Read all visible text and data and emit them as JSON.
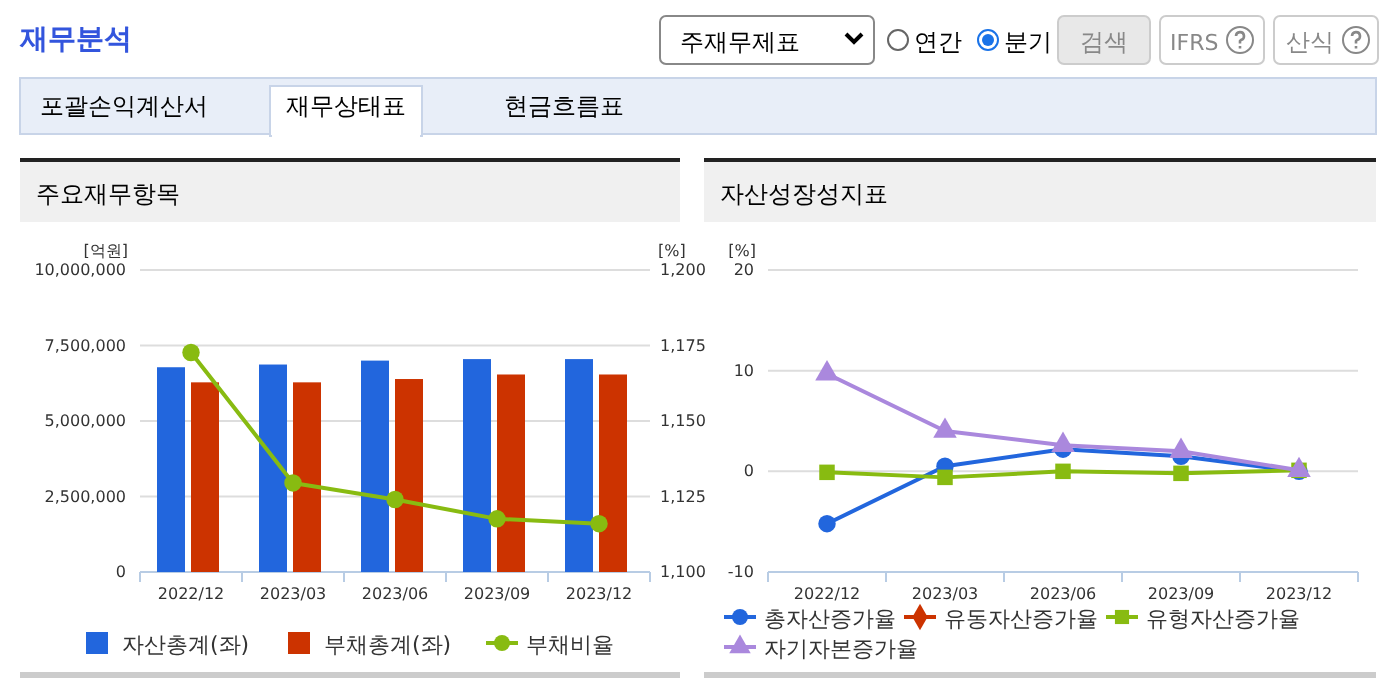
{
  "chart_data": [
    {
      "type": "bar",
      "title": "주요재무항목",
      "ylabel": "[억원]",
      "y2label": "[%]",
      "annotations": [
        "재무분석",
        "주재무제표",
        "연간",
        "분기",
        "검색",
        "IFRS",
        "산식",
        "포괄손익계산서",
        "재무상태표",
        "현금흐름표"
      ],
      "categories": [
        "2022/12",
        "2023/03",
        "2023/06",
        "2023/09",
        "2023/12"
      ],
      "series": [
        {
          "name": "자산총계(좌)",
          "color": "#2266dd",
          "values": [
            6780000,
            6870000,
            7000000,
            7050000,
            7050000
          ]
        },
        {
          "name": "부채총계(좌)",
          "color": "#cc3300",
          "values": [
            6280000,
            6280000,
            6390000,
            6540000,
            6540000
          ]
        },
        {
          "name": "부채비율",
          "type": "line",
          "axis": "y2",
          "color": "#88bb11",
          "marker": "circle",
          "values": [
            1172.7,
            1129.5,
            1124,
            1117.6,
            1116
          ]
        }
      ],
      "ylim": [
        0,
        10000000
      ],
      "yticks": [
        {
          "value": 0,
          "label": "0"
        },
        {
          "value": 2500000,
          "label": "2,500,000"
        },
        {
          "value": 5000000,
          "label": "5,000,000"
        },
        {
          "value": 7500000,
          "label": "7,500,000"
        },
        {
          "value": 10000000,
          "label": "10,000,000"
        }
      ],
      "y2lim": [
        1100,
        1200
      ],
      "y2ticks": [
        {
          "value": 1100,
          "label": "1,100"
        },
        {
          "value": 1125,
          "label": "1,125"
        },
        {
          "value": 1150,
          "label": "1,150"
        },
        {
          "value": 1175,
          "label": "1,175"
        },
        {
          "value": 1200,
          "label": "1,200"
        }
      ],
      "grid": "y",
      "legend": "bottom"
    },
    {
      "type": "line",
      "title": "자산성장성지표",
      "ylabel": "[%]",
      "categories": [
        "2022/12",
        "2023/03",
        "2023/06",
        "2023/09",
        "2023/12"
      ],
      "series": [
        {
          "name": "총자산증가율",
          "color": "#2266dd",
          "marker": "circle",
          "values": [
            -5.2,
            0.5,
            2.2,
            1.5,
            0
          ]
        },
        {
          "name": "유동자산증가율",
          "color": "#cc3300",
          "marker": "diamond",
          "values": [
            null,
            null,
            null,
            null,
            null
          ]
        },
        {
          "name": "유형자산증가율",
          "color": "#88bb11",
          "marker": "square",
          "values": [
            -0.1,
            -0.6,
            0,
            -0.2,
            0.1
          ]
        },
        {
          "name": "자기자본증가율",
          "color": "#aa88dd",
          "marker": "triangle",
          "values": [
            9.7,
            4,
            2.6,
            2,
            0.1
          ]
        }
      ],
      "ylim": [
        -10,
        20
      ],
      "yticks": [
        -10,
        0,
        10,
        20
      ],
      "grid": "y",
      "legend": "bottom"
    }
  ]
}
